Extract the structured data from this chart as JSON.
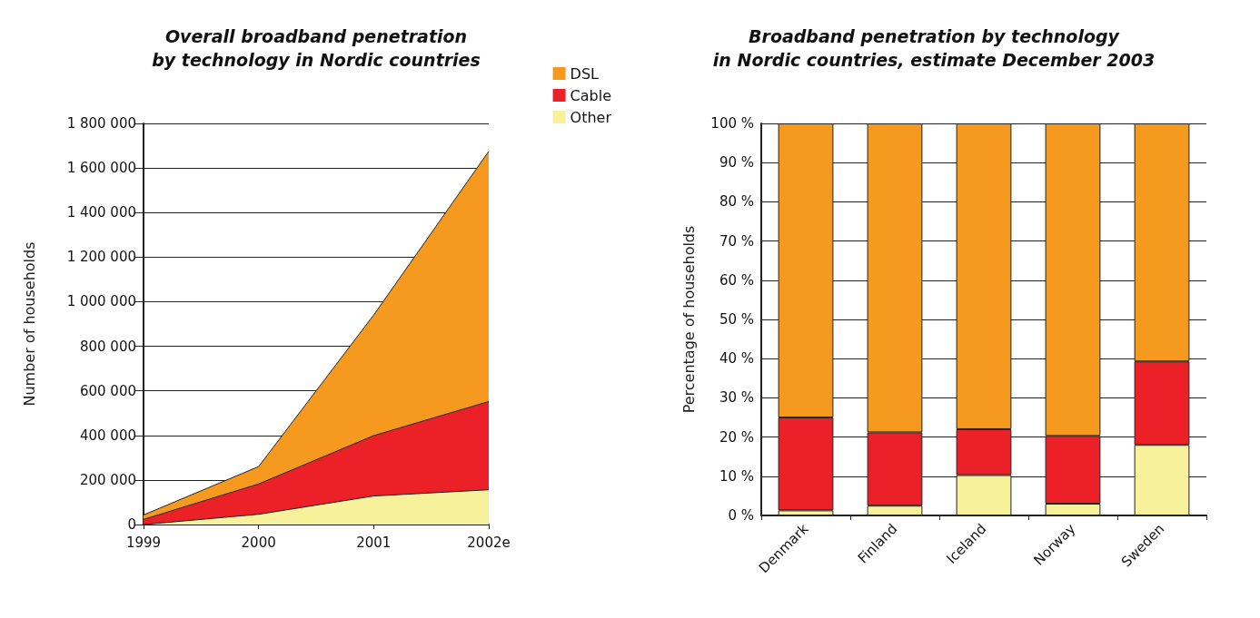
{
  "chart_data": [
    {
      "type": "area",
      "title": "Overall broadband penetration\nby technology in Nordic countries",
      "ylabel": "Number of households",
      "categories": [
        "1999",
        "2000",
        "2001",
        "2002e"
      ],
      "stacked": true,
      "ylim": [
        0,
        1800000
      ],
      "yticks": [
        0,
        {
          "value": 200000,
          "label": "200 000"
        },
        {
          "value": 400000,
          "label": "400 000"
        },
        {
          "value": 600000,
          "label": "600 000"
        },
        {
          "value": 800000,
          "label": "800 000"
        },
        {
          "value": 1000000,
          "label": "1 000 000"
        },
        {
          "value": 1200000,
          "label": "1 200 000"
        },
        {
          "value": 1400000,
          "label": "1 400 000"
        },
        {
          "value": 1600000,
          "label": "1 600 000"
        },
        {
          "value": 1800000,
          "label": "1 800 000"
        }
      ],
      "grid": "y",
      "legend": "top right",
      "series": [
        {
          "name": "Other",
          "color": "#f7f19c",
          "values": [
            0,
            46000,
            128000,
            156000
          ]
        },
        {
          "name": "Cable",
          "color": "#ec2027",
          "values": [
            23000,
            136000,
            271000,
            396000
          ]
        },
        {
          "name": "DSL",
          "color": "#f6991f",
          "values": [
            20000,
            78000,
            541000,
            1123000
          ]
        }
      ]
    },
    {
      "type": "bar",
      "title": "Broadband penetration by technology\nin Nordic countries, estimate December 2003",
      "ylabel": "Percentage of households",
      "categories": [
        "Denmark",
        "Finland",
        "Iceland",
        "Norway",
        "Sweden"
      ],
      "stacked": true,
      "ylim": [
        0,
        100
      ],
      "yticks": [
        {
          "value": 0,
          "label": "0 %"
        },
        {
          "value": 10,
          "label": "10 %"
        },
        {
          "value": 20,
          "label": "20 %"
        },
        {
          "value": 30,
          "label": "30 %"
        },
        {
          "value": 40,
          "label": "40 %"
        },
        {
          "value": 50,
          "label": "50 %"
        },
        {
          "value": 60,
          "label": "60 %"
        },
        {
          "value": 70,
          "label": "70 %"
        },
        {
          "value": 80,
          "label": "80 %"
        },
        {
          "value": 90,
          "label": "90 %"
        },
        {
          "value": 100,
          "label": "100 %"
        }
      ],
      "grid": "y",
      "legend": false,
      "series": [
        {
          "color": "#f7f19c",
          "values": [
            1.3,
            2.5,
            10.3,
            3.0,
            18.0
          ]
        },
        {
          "color": "#ec2027",
          "values": [
            23.7,
            18.7,
            11.7,
            17.3,
            21.3
          ]
        },
        {
          "color": "#f6991f",
          "values": [
            75.0,
            78.8,
            78.0,
            79.7,
            60.7
          ]
        }
      ]
    }
  ]
}
